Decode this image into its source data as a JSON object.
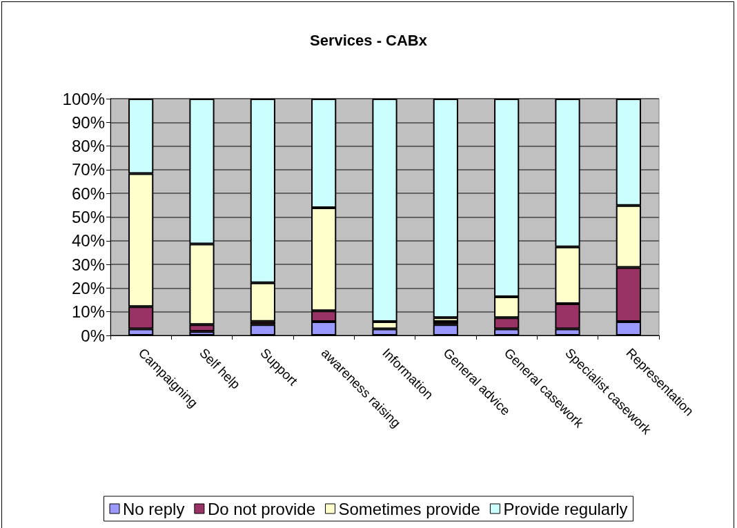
{
  "chart_data": {
    "type": "bar",
    "title": "Services - CABx",
    "stacked": true,
    "categories": [
      "Campaigning",
      "Self help",
      "Support",
      "awareness raising",
      "Information",
      "General advice",
      "General casework",
      "Specialist casework",
      "Representation"
    ],
    "series": [
      {
        "name": "No reply",
        "color": "#9999ff",
        "values": [
          2.8,
          1.7,
          4.6,
          5.8,
          2.8,
          4.6,
          2.8,
          2.8,
          5.8
        ]
      },
      {
        "name": "Do not provide",
        "color": "#993366",
        "values": [
          9.4,
          2.9,
          1.3,
          4.6,
          null,
          1.2,
          4.7,
          10.6,
          22.9
        ]
      },
      {
        "name": "Sometimes provide",
        "color": "#ffffcc",
        "values": [
          56.2,
          34,
          16.3,
          43.5,
          3,
          1.7,
          8.8,
          24,
          26.2
        ]
      },
      {
        "name": "Provide regularly",
        "color": "#ccffff",
        "values": [
          31.6,
          61.4,
          77.8,
          46.1,
          94.2,
          92.5,
          83.7,
          62.6,
          45.1
        ]
      }
    ],
    "ylim": [
      0,
      100
    ],
    "yticks": [
      {
        "value": 0,
        "label": "0%"
      },
      {
        "value": 10,
        "label": "10%"
      },
      {
        "value": 20,
        "label": "20%"
      },
      {
        "value": 30,
        "label": "30%"
      },
      {
        "value": 40,
        "label": "40%"
      },
      {
        "value": 50,
        "label": "50%"
      },
      {
        "value": 60,
        "label": "60%"
      },
      {
        "value": 70,
        "label": "70%"
      },
      {
        "value": 80,
        "label": "80%"
      },
      {
        "value": 90,
        "label": "90%"
      },
      {
        "value": 100,
        "label": "100%"
      }
    ],
    "grid": "y",
    "legend": "bottom"
  }
}
